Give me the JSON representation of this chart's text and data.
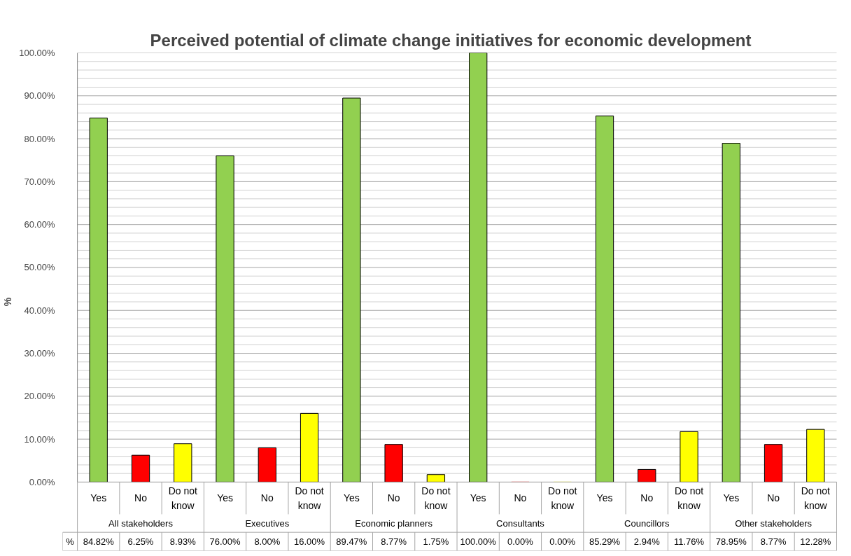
{
  "chart_data": {
    "type": "bar",
    "title": "Perceived potential of climate change initiatives for economic development",
    "ylabel": "%",
    "categories": [
      "Yes",
      "No",
      "Do not know",
      "Yes",
      "No",
      "Do not know",
      "Yes",
      "No",
      "Do not know",
      "Yes",
      "No",
      "Do not know",
      "Yes",
      "No",
      "Do not know",
      "Yes",
      "No",
      "Do not know"
    ],
    "values": [
      84.82,
      6.25,
      8.93,
      76.0,
      8.0,
      16.0,
      89.47,
      8.77,
      1.75,
      100.0,
      0.0,
      0.0,
      85.29,
      2.94,
      11.76,
      78.95,
      8.77,
      12.28
    ],
    "colors": [
      "#92d050",
      "#ff0000",
      "#ffff00",
      "#92d050",
      "#ff0000",
      "#ffff00",
      "#92d050",
      "#ff0000",
      "#ffff00",
      "#92d050",
      "#ff0000",
      "#ffff00",
      "#92d050",
      "#ff0000",
      "#ffff00",
      "#92d050",
      "#ff0000",
      "#ffff00"
    ],
    "value_labels": [
      "84.82%",
      "6.25%",
      "8.93%",
      "76.00%",
      "8.00%",
      "16.00%",
      "89.47%",
      "8.77%",
      "1.75%",
      "100.00%",
      "0.00%",
      "0.00%",
      "85.29%",
      "2.94%",
      "11.76%",
      "78.95%",
      "8.77%",
      "12.28%"
    ],
    "annotations": [
      "All stakeholders",
      "Executives",
      "Economic planners",
      "Consultants",
      "Councillors",
      "Other stakeholders"
    ],
    "ylim": [
      0,
      100
    ],
    "yticks": [
      {
        "value": 0,
        "label": "0.00%"
      },
      {
        "value": 10,
        "label": "10.00%"
      },
      {
        "value": 20,
        "label": "20.00%"
      },
      {
        "value": 30,
        "label": "30.00%"
      },
      {
        "value": 40,
        "label": "40.00%"
      },
      {
        "value": 50,
        "label": "50.00%"
      },
      {
        "value": 60,
        "label": "60.00%"
      },
      {
        "value": 70,
        "label": "70.00%"
      },
      {
        "value": 80,
        "label": "80.00%"
      },
      {
        "value": 90,
        "label": "90.00%"
      },
      {
        "value": 100,
        "label": "100.00%"
      }
    ],
    "grid": "y"
  }
}
